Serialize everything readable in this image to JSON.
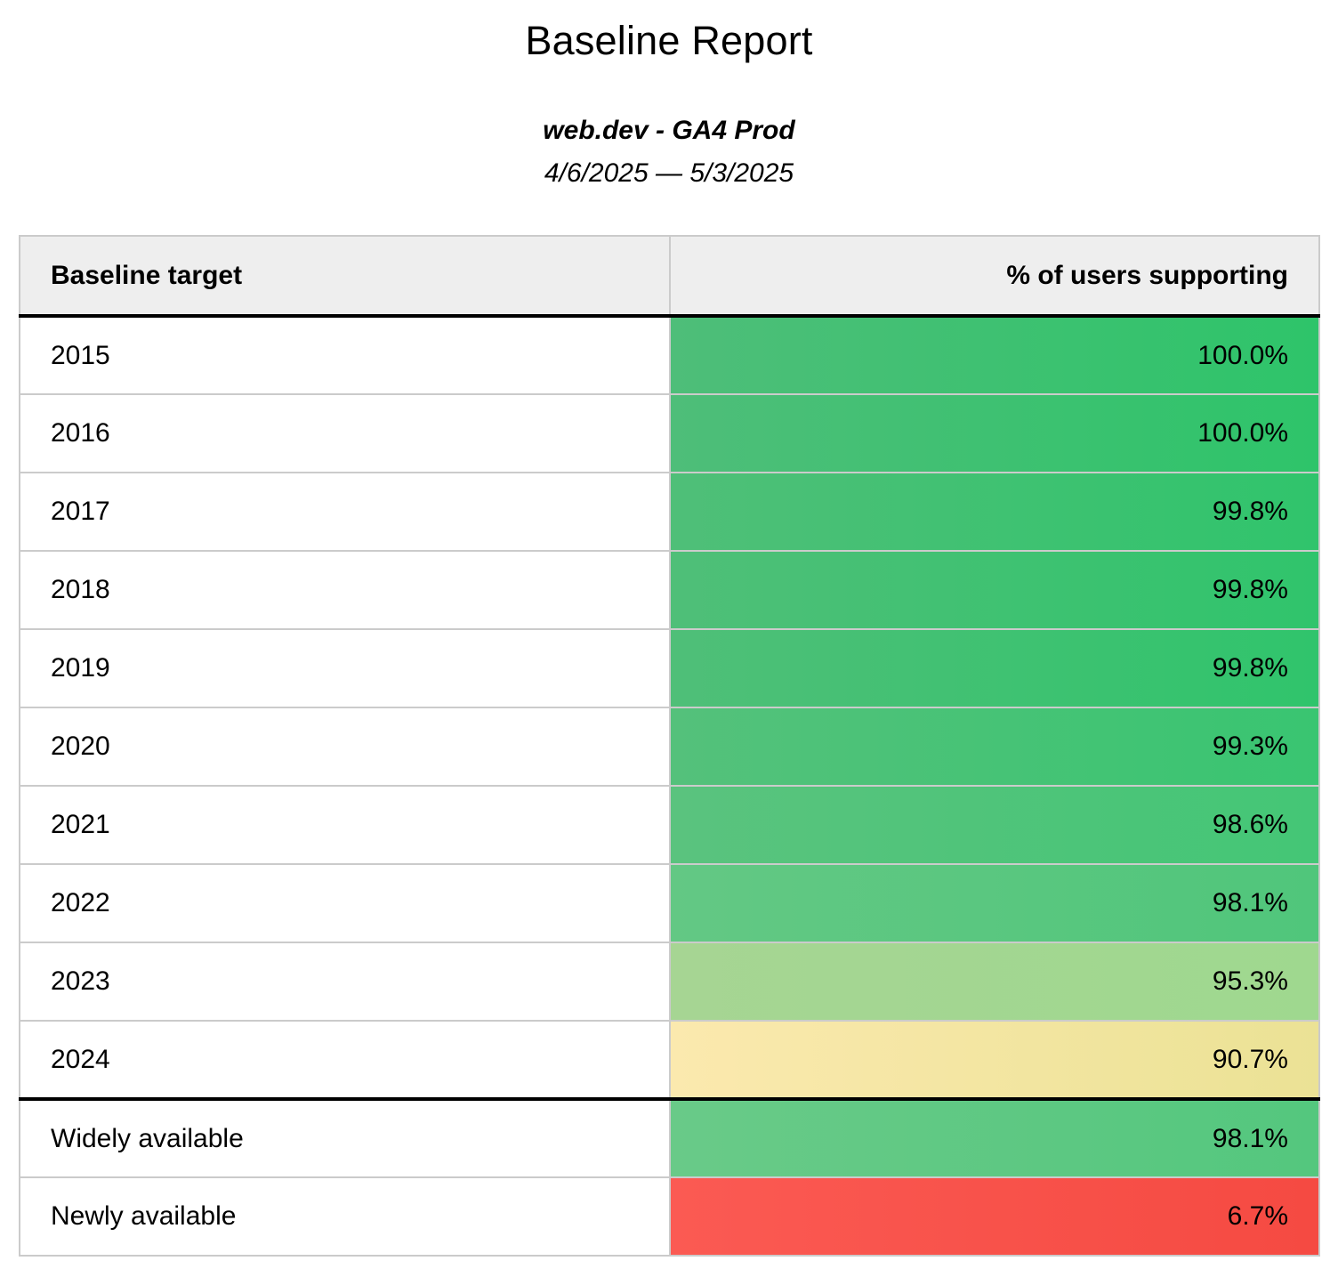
{
  "header": {
    "title": "Baseline Report",
    "subtitle": "web.dev - GA4 Prod",
    "date_range": "4/6/2025 — 5/3/2025"
  },
  "table": {
    "columns": [
      {
        "label": "Baseline target"
      },
      {
        "label": "% of users supporting"
      }
    ],
    "rows": [
      {
        "target": "2015",
        "value": "100.0%",
        "color_left": "#4ebe79",
        "color_right": "#2ec46a"
      },
      {
        "target": "2016",
        "value": "100.0%",
        "color_left": "#4ebe79",
        "color_right": "#2ec46a"
      },
      {
        "target": "2017",
        "value": "99.8%",
        "color_left": "#4fbf78",
        "color_right": "#30c46c"
      },
      {
        "target": "2018",
        "value": "99.8%",
        "color_left": "#4fbf78",
        "color_right": "#30c46c"
      },
      {
        "target": "2019",
        "value": "99.8%",
        "color_left": "#4fbf78",
        "color_right": "#30c46c"
      },
      {
        "target": "2020",
        "value": "99.3%",
        "color_left": "#54c17b",
        "color_right": "#39c571"
      },
      {
        "target": "2021",
        "value": "98.6%",
        "color_left": "#5ac37e",
        "color_right": "#44c676"
      },
      {
        "target": "2022",
        "value": "98.1%",
        "color_left": "#63c884",
        "color_right": "#50c67b"
      },
      {
        "target": "2023",
        "value": "95.3%",
        "color_left": "#a6d593",
        "color_right": "#9fd88f"
      },
      {
        "target": "2024",
        "value": "90.7%",
        "color_left": "#fbe9ae",
        "color_right": "#ebe295"
      },
      {
        "target": "Widely available",
        "value": "98.1%",
        "color_left": "#69ca88",
        "color_right": "#54c77e"
      },
      {
        "target": "Newly available",
        "value": "6.7%",
        "color_left": "#fb5a53",
        "color_right": "#f54a42"
      }
    ]
  },
  "chart_data": {
    "type": "table",
    "title": "Baseline Report",
    "subtitle": "web.dev - GA4 Prod",
    "date_range": "4/6/2025 — 5/3/2025",
    "columns": [
      "Baseline target",
      "% of users supporting"
    ],
    "rows": [
      {
        "baseline_target": "2015",
        "percent_users_supporting": 100.0
      },
      {
        "baseline_target": "2016",
        "percent_users_supporting": 100.0
      },
      {
        "baseline_target": "2017",
        "percent_users_supporting": 99.8
      },
      {
        "baseline_target": "2018",
        "percent_users_supporting": 99.8
      },
      {
        "baseline_target": "2019",
        "percent_users_supporting": 99.8
      },
      {
        "baseline_target": "2020",
        "percent_users_supporting": 99.3
      },
      {
        "baseline_target": "2021",
        "percent_users_supporting": 98.6
      },
      {
        "baseline_target": "2022",
        "percent_users_supporting": 98.1
      },
      {
        "baseline_target": "2023",
        "percent_users_supporting": 95.3
      },
      {
        "baseline_target": "2024",
        "percent_users_supporting": 90.7
      },
      {
        "baseline_target": "Widely available",
        "percent_users_supporting": 98.1
      },
      {
        "baseline_target": "Newly available",
        "percent_users_supporting": 6.7
      }
    ],
    "value_color_scale": {
      "high_green": "#2ec46a",
      "mid_light_green": "#a6d593",
      "low_yellow": "#fbe9ae",
      "critical_red": "#f54a42"
    }
  }
}
